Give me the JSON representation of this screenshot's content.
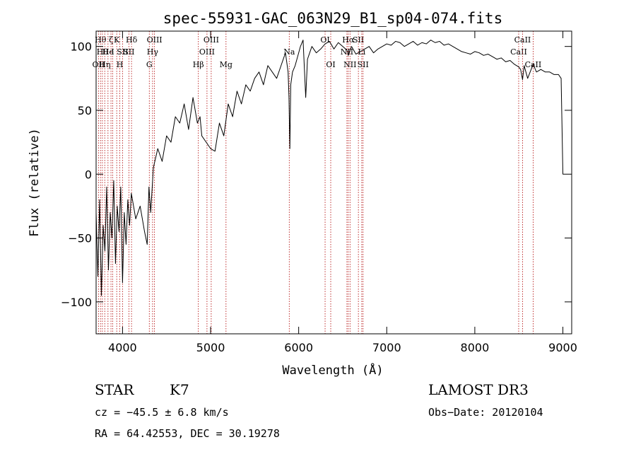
{
  "chart_data": {
    "type": "line",
    "title": "spec-55931-GAC_063N29_B1_sp04-074.fits",
    "xlabel": "Wavelength (Å)",
    "ylabel": "Flux (relative)",
    "xlim": [
      3700,
      9100
    ],
    "ylim": [
      -125,
      112
    ],
    "xticks": [
      4000,
      5000,
      6000,
      7000,
      8000,
      9000
    ],
    "yticks": [
      -100,
      -50,
      0,
      50,
      100
    ],
    "grid": false,
    "series": [
      {
        "name": "flux",
        "x": [
          3700,
          3720,
          3740,
          3760,
          3780,
          3800,
          3820,
          3840,
          3860,
          3880,
          3900,
          3920,
          3940,
          3960,
          3980,
          4000,
          4020,
          4040,
          4060,
          4080,
          4100,
          4150,
          4200,
          4250,
          4280,
          4300,
          4320,
          4350,
          4400,
          4450,
          4500,
          4550,
          4600,
          4650,
          4700,
          4750,
          4800,
          4850,
          4880,
          4900,
          4950,
          5000,
          5050,
          5100,
          5150,
          5200,
          5250,
          5300,
          5350,
          5400,
          5450,
          5500,
          5550,
          5600,
          5650,
          5700,
          5750,
          5800,
          5850,
          5880,
          5890,
          5900,
          5910,
          5930,
          5960,
          6000,
          6020,
          6050,
          6080,
          6100,
          6150,
          6200,
          6250,
          6300,
          6350,
          6400,
          6450,
          6500,
          6550,
          6563,
          6600,
          6650,
          6700,
          6750,
          6800,
          6850,
          6900,
          6950,
          7000,
          7050,
          7100,
          7150,
          7200,
          7250,
          7300,
          7350,
          7400,
          7450,
          7500,
          7550,
          7600,
          7650,
          7700,
          7750,
          7800,
          7850,
          7900,
          7950,
          8000,
          8050,
          8100,
          8150,
          8200,
          8250,
          8300,
          8350,
          8400,
          8450,
          8498,
          8520,
          8542,
          8560,
          8600,
          8662,
          8700,
          8750,
          8800,
          8850,
          8900,
          8950,
          8980,
          9000,
          9020
        ],
        "y": [
          -30,
          -80,
          -20,
          -95,
          -40,
          -60,
          -10,
          -75,
          -30,
          -50,
          -5,
          -70,
          -25,
          -45,
          -10,
          -85,
          -30,
          -55,
          -20,
          -40,
          -15,
          -35,
          -25,
          -45,
          -55,
          -10,
          -30,
          5,
          20,
          10,
          30,
          25,
          45,
          40,
          55,
          35,
          60,
          40,
          45,
          30,
          25,
          20,
          18,
          40,
          30,
          55,
          45,
          65,
          55,
          70,
          65,
          75,
          80,
          70,
          85,
          80,
          75,
          85,
          95,
          80,
          60,
          20,
          70,
          80,
          85,
          95,
          100,
          105,
          60,
          90,
          100,
          95,
          98,
          102,
          104,
          98,
          103,
          100,
          97,
          93,
          100,
          94,
          96,
          98,
          100,
          95,
          98,
          100,
          102,
          101,
          104,
          103,
          100,
          102,
          104,
          101,
          103,
          102,
          105,
          103,
          104,
          101,
          102,
          100,
          98,
          96,
          95,
          94,
          96,
          95,
          93,
          94,
          92,
          90,
          91,
          88,
          89,
          86,
          84,
          82,
          74,
          85,
          75,
          86,
          80,
          82,
          80,
          80,
          78,
          78,
          75,
          0,
          0
        ]
      }
    ],
    "line_markers": [
      {
        "x": 3727,
        "labels": [
          "OII"
        ],
        "pos": "l3"
      },
      {
        "x": 3750,
        "labels": [
          "Hθ"
        ],
        "pos": "t"
      },
      {
        "x": 3771,
        "labels": [
          "Hθ"
        ],
        "pos": "l2"
      },
      {
        "x": 3798,
        "labels": [
          "Hη"
        ],
        "pos": "l3"
      },
      {
        "x": 3835,
        "labels": [
          "He"
        ],
        "pos": "l2"
      },
      {
        "x": 3869,
        "labels": [
          "ζ"
        ],
        "pos": "t"
      },
      {
        "x": 3889,
        "labels": [
          "I"
        ],
        "pos": "l2"
      },
      {
        "x": 3934,
        "labels": [
          "K"
        ],
        "pos": "t"
      },
      {
        "x": 3969,
        "labels": [
          "H"
        ],
        "pos": "l3"
      },
      {
        "x": 4000,
        "labels": [
          "SII"
        ],
        "pos": "l2"
      },
      {
        "x": 4072,
        "labels": [
          "SII"
        ],
        "pos": "l2"
      },
      {
        "x": 4102,
        "labels": [
          "Hδ"
        ],
        "pos": "t"
      },
      {
        "x": 4304,
        "labels": [
          "G"
        ],
        "pos": "l3"
      },
      {
        "x": 4341,
        "labels": [
          "Hγ"
        ],
        "pos": "l2"
      },
      {
        "x": 4363,
        "labels": [
          "OIII"
        ],
        "pos": "t"
      },
      {
        "x": 4861,
        "labels": [
          "Hβ"
        ],
        "pos": "l3"
      },
      {
        "x": 4959,
        "labels": [
          "OIII"
        ],
        "pos": "l2"
      },
      {
        "x": 5007,
        "labels": [
          "OIII"
        ],
        "pos": "t"
      },
      {
        "x": 5175,
        "labels": [
          "Mg"
        ],
        "pos": "l3"
      },
      {
        "x": 5893,
        "labels": [
          "Na"
        ],
        "pos": "l2"
      },
      {
        "x": 6300,
        "labels": [
          "OI"
        ],
        "pos": "t"
      },
      {
        "x": 6364,
        "labels": [
          "OI"
        ],
        "pos": "l3"
      },
      {
        "x": 6548,
        "labels": [
          "NII"
        ],
        "pos": "l2"
      },
      {
        "x": 6563,
        "labels": [
          "Hα"
        ],
        "pos": "t"
      },
      {
        "x": 6583,
        "labels": [
          "NII"
        ],
        "pos": "l3"
      },
      {
        "x": 6678,
        "labels": [
          "SII"
        ],
        "pos": "t"
      },
      {
        "x": 6716,
        "labels": [
          "Li"
        ],
        "pos": "l2"
      },
      {
        "x": 6731,
        "labels": [
          "SII"
        ],
        "pos": "l3"
      },
      {
        "x": 8498,
        "labels": [
          "CaII"
        ],
        "pos": "l2"
      },
      {
        "x": 8542,
        "labels": [
          "CaII"
        ],
        "pos": "t"
      },
      {
        "x": 8662,
        "labels": [
          "CaII"
        ],
        "pos": "l3"
      }
    ]
  },
  "info": {
    "object_class": "STAR",
    "subclass": "K7",
    "survey": "LAMOST DR3",
    "redshift_line": "cz = −45.5 ± 6.8 km/s",
    "obs_date": "Obs−Date: 20120104",
    "coords_line": "RA =  64.42553, DEC =  30.19278"
  }
}
